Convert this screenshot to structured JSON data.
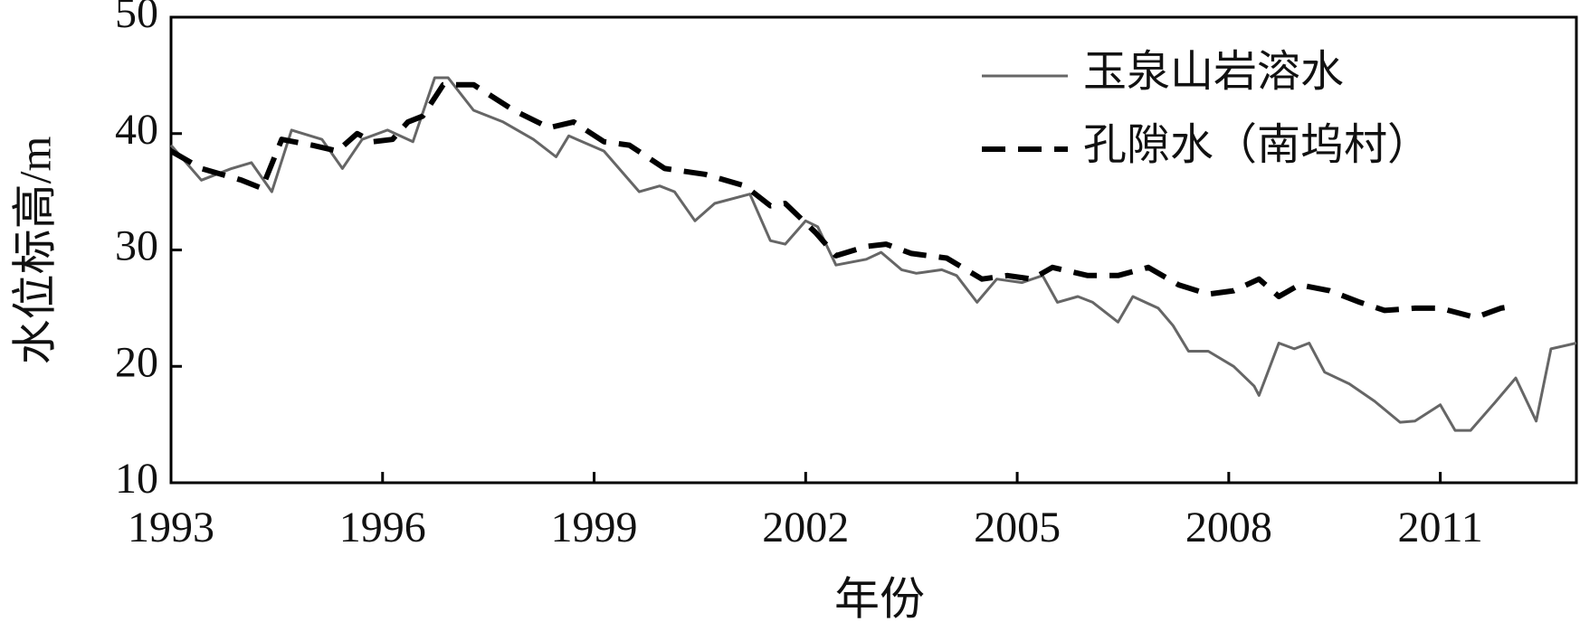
{
  "chart_data": {
    "type": "line",
    "x_label": "年份",
    "y_label": "水位标高/m",
    "xlim": [
      1993,
      2012.93
    ],
    "ylim": [
      10,
      50
    ],
    "xticks": [
      1993,
      1996,
      1999,
      2002,
      2005,
      2008,
      2011
    ],
    "yticks": [
      10,
      20,
      30,
      40,
      50
    ],
    "legend": "top-right",
    "series": [
      {
        "name": "玉泉山岩溶水",
        "color": "#666666",
        "line_style": "solid",
        "x": [
          1993.0,
          1993.43,
          1993.86,
          1994.14,
          1994.43,
          1994.71,
          1995.14,
          1995.43,
          1995.71,
          1996.07,
          1996.43,
          1996.74,
          1996.93,
          1997.29,
          1997.71,
          1998.14,
          1998.46,
          1998.64,
          1999.14,
          1999.64,
          1999.93,
          2000.14,
          2000.43,
          2000.71,
          2001.21,
          2001.5,
          2001.71,
          2002.0,
          2002.17,
          2002.43,
          2002.86,
          2003.07,
          2003.36,
          2003.57,
          2003.93,
          2004.14,
          2004.43,
          2004.71,
          2005.07,
          2005.36,
          2005.57,
          2005.86,
          2006.07,
          2006.43,
          2006.64,
          2007.0,
          2007.21,
          2007.43,
          2007.71,
          2008.07,
          2008.36,
          2008.43,
          2008.71,
          2008.93,
          2009.14,
          2009.36,
          2009.71,
          2010.07,
          2010.43,
          2010.64,
          2011.0,
          2011.21,
          2011.43,
          2011.79,
          2012.07,
          2012.36,
          2012.57,
          2012.93
        ],
        "values": [
          39,
          36,
          37,
          37.5,
          35,
          40.3,
          39.5,
          37,
          39.5,
          40.3,
          39.3,
          44.8,
          44.8,
          42,
          41,
          39.5,
          38,
          39.8,
          38.5,
          35,
          35.5,
          35,
          32.5,
          34,
          34.8,
          30.8,
          30.5,
          32.5,
          32,
          28.7,
          29.2,
          29.8,
          28.3,
          28,
          28.3,
          27.8,
          25.5,
          27.5,
          27.2,
          27.8,
          25.5,
          26,
          25.5,
          23.8,
          26,
          25,
          23.5,
          21.3,
          21.3,
          20,
          18.3,
          17.5,
          22,
          21.5,
          22,
          19.5,
          18.5,
          17,
          15.2,
          15.3,
          16.7,
          14.5,
          14.5,
          17,
          19,
          15.3,
          21.5,
          22
        ]
      },
      {
        "name": "孔隙水（南坞村）",
        "color": "#000000",
        "line_style": "dashed",
        "x": [
          1993.0,
          1993.43,
          1994.0,
          1994.29,
          1994.57,
          1995.0,
          1995.36,
          1995.64,
          1995.86,
          1996.14,
          1996.36,
          1996.57,
          1996.86,
          1997.29,
          1997.86,
          1998.36,
          1998.71,
          1999.14,
          1999.5,
          2000.0,
          2000.57,
          2001.14,
          2001.5,
          2001.71,
          2002.14,
          2002.43,
          2002.86,
          2003.14,
          2003.5,
          2004.0,
          2004.5,
          2004.86,
          2005.21,
          2005.5,
          2006.0,
          2006.43,
          2006.86,
          2007.29,
          2007.71,
          2008.07,
          2008.43,
          2008.71,
          2009.0,
          2009.43,
          2009.86,
          2010.21,
          2010.64,
          2011.0,
          2011.5,
          2011.86,
          2012.07
        ],
        "values": [
          38.5,
          37,
          36,
          35.3,
          39.5,
          39,
          38.5,
          40,
          39.3,
          39.5,
          41,
          41.5,
          44.2,
          44.2,
          42,
          40.5,
          41,
          39.3,
          39,
          37,
          36.5,
          35.5,
          33.8,
          34,
          31.5,
          29.5,
          30.3,
          30.5,
          29.7,
          29.3,
          27.5,
          27.8,
          27.5,
          28.5,
          27.8,
          27.8,
          28.5,
          27,
          26.2,
          26.5,
          27.5,
          26,
          27,
          26.5,
          25.5,
          24.8,
          25,
          25,
          24.2,
          25,
          25.2
        ]
      }
    ]
  }
}
